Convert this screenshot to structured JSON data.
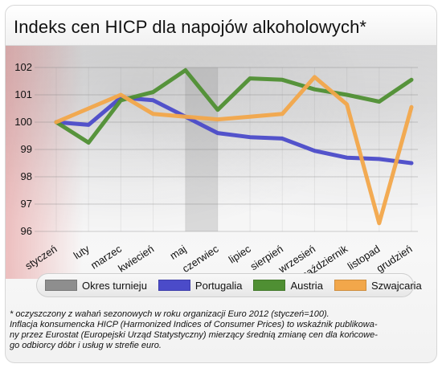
{
  "title": "Indeks cen HICP dla napojów alkoholowych*",
  "legend": [
    {
      "id": "okres",
      "label": "Okres turnieju",
      "color": "#8e8e8e"
    },
    {
      "id": "portugalia",
      "label": "Portugalia",
      "color": "#4b4bc9"
    },
    {
      "id": "austria",
      "label": "Austria",
      "color": "#4f8f33"
    },
    {
      "id": "szwajcaria",
      "label": "Szwajcaria",
      "color": "#f2a74a"
    }
  ],
  "footnote": {
    "line1": "* oczyszczony z wahań sezonowych w roku organizacji Euro 2012 (styczeń=100).",
    "line2": "Inflacja konsumencka HICP (Harmonized Indices of Consumer Prices) to wskaźnik publikowa-",
    "line3": "ny przez Eurostat (Europejski Urząd Statystyczny) mierzący średnią zmianę cen dla końcowe-",
    "line4": "go odbiorcy dóbr i usług w strefie euro."
  },
  "chart_data": {
    "type": "line",
    "categories": [
      "styczeń",
      "luty",
      "marzec",
      "kwiecień",
      "maj",
      "czerwiec",
      "lipiec",
      "sierpień",
      "wrzesień",
      "październik",
      "listopad",
      "grudzień"
    ],
    "ylim": [
      96,
      102
    ],
    "yticks": [
      96,
      97,
      98,
      99,
      100,
      101,
      102
    ],
    "highlight_period": {
      "label": "Okres turnieju",
      "from_category": "maj",
      "to_category": "czerwiec"
    },
    "series": [
      {
        "name": "Portugalia",
        "color": "#4b4bc9",
        "values": [
          100.0,
          99.9,
          100.9,
          100.8,
          100.2,
          99.6,
          99.45,
          99.4,
          98.95,
          98.7,
          98.65,
          98.5
        ]
      },
      {
        "name": "Austria",
        "color": "#4f8f33",
        "values": [
          100.0,
          99.25,
          100.8,
          101.1,
          101.9,
          100.45,
          101.6,
          101.55,
          101.2,
          101.0,
          100.75,
          101.55
        ]
      },
      {
        "name": "Szwajcaria",
        "color": "#f2a74a",
        "values": [
          100.0,
          100.5,
          101.0,
          100.3,
          100.2,
          100.1,
          100.2,
          100.3,
          101.65,
          100.65,
          96.3,
          100.55
        ]
      }
    ],
    "legend_position": "bottom",
    "grid": true
  }
}
